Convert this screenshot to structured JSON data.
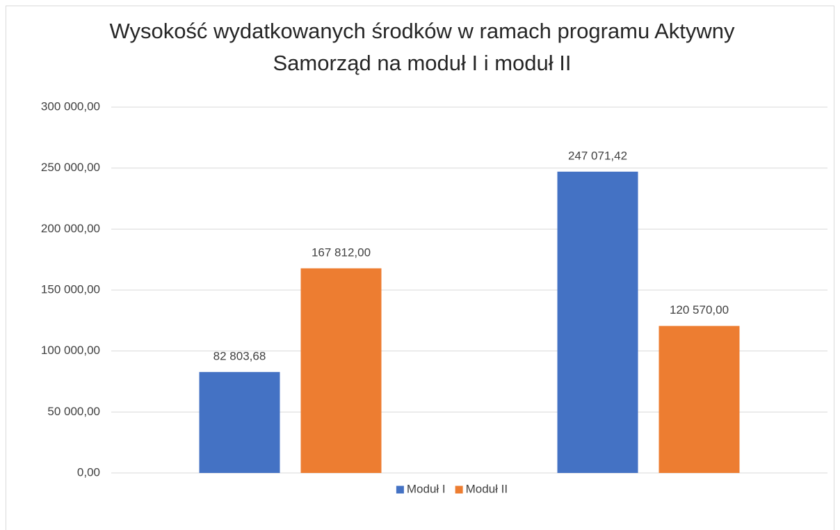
{
  "chart_data": {
    "type": "bar",
    "title": "Wysokość wydatkowanych środków w ramach programu Aktywny Samorząd na moduł I i moduł II",
    "categories": [
      null,
      null
    ],
    "series": [
      {
        "name": "Moduł I",
        "color": "#4472c4",
        "values": [
          82803.68,
          247071.42
        ],
        "value_labels": [
          "82 803,68",
          "247 071,42"
        ]
      },
      {
        "name": "Moduł II",
        "color": "#ed7d31",
        "values": [
          167812,
          120570
        ],
        "value_labels": [
          "167 812,00",
          "120 570,00"
        ]
      }
    ],
    "ylim": [
      0,
      300000
    ],
    "yticks": [
      {
        "value": 0,
        "label": "0,00"
      },
      {
        "value": 50000,
        "label": "50 000,00"
      },
      {
        "value": 100000,
        "label": "100 000,00"
      },
      {
        "value": 150000,
        "label": "150 000,00"
      },
      {
        "value": 200000,
        "label": "200 000,00"
      },
      {
        "value": 250000,
        "label": "250 000,00"
      },
      {
        "value": 300000,
        "label": "300 000,00"
      }
    ],
    "grid": true,
    "legend": "bottom"
  }
}
